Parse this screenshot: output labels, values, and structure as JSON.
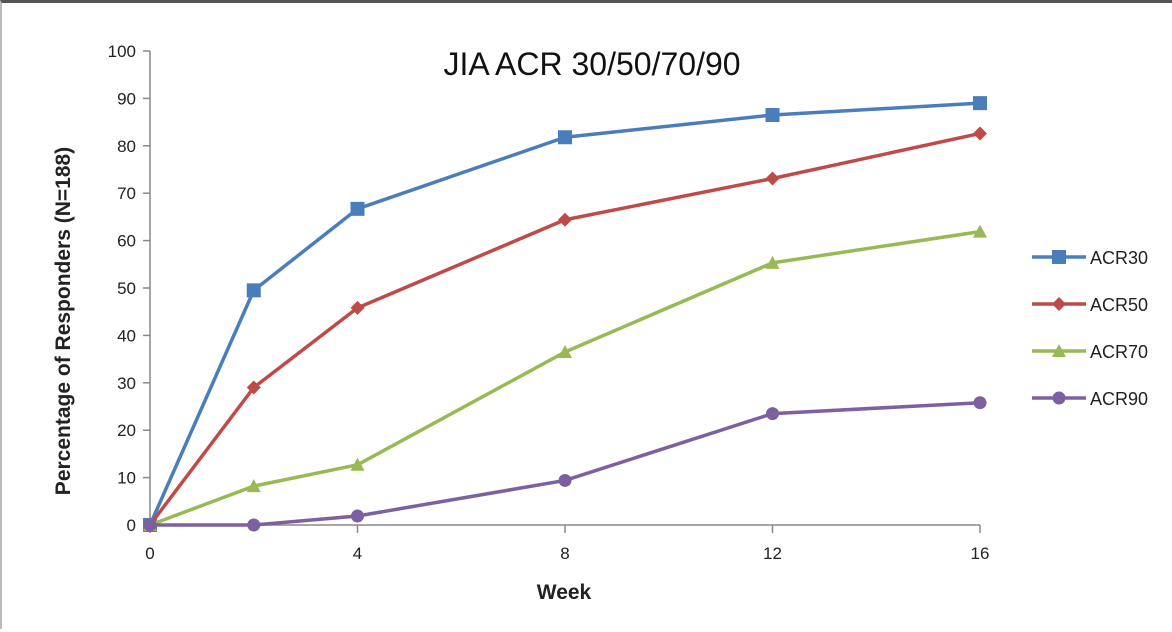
{
  "chart_data": {
    "type": "line",
    "title": "JIA ACR 30/50/70/90",
    "xlabel": "Week",
    "ylabel": "Percentage of Responders (N=188)",
    "x": [
      0,
      2,
      4,
      8,
      12,
      16
    ],
    "xticks": [
      0,
      4,
      8,
      12,
      16
    ],
    "xlim": [
      0,
      16
    ],
    "yticks": [
      0,
      10,
      20,
      30,
      40,
      50,
      60,
      70,
      80,
      90,
      100
    ],
    "ylim": [
      0,
      100
    ],
    "grid": false,
    "legend_position": "right",
    "series": [
      {
        "name": "ACR30",
        "color": "#4a7ebb",
        "marker": "square",
        "values": [
          0,
          49.5,
          66.7,
          81.8,
          86.5,
          89.0
        ]
      },
      {
        "name": "ACR50",
        "color": "#be4b48",
        "marker": "diamond",
        "values": [
          0,
          29.0,
          45.8,
          64.4,
          73.1,
          82.6
        ]
      },
      {
        "name": "ACR70",
        "color": "#98b954",
        "marker": "triangle",
        "values": [
          0,
          8.2,
          12.7,
          36.5,
          55.3,
          61.9
        ]
      },
      {
        "name": "ACR90",
        "color": "#7d60a0",
        "marker": "circle",
        "values": [
          0,
          0,
          1.9,
          9.4,
          23.5,
          25.8
        ]
      }
    ]
  }
}
